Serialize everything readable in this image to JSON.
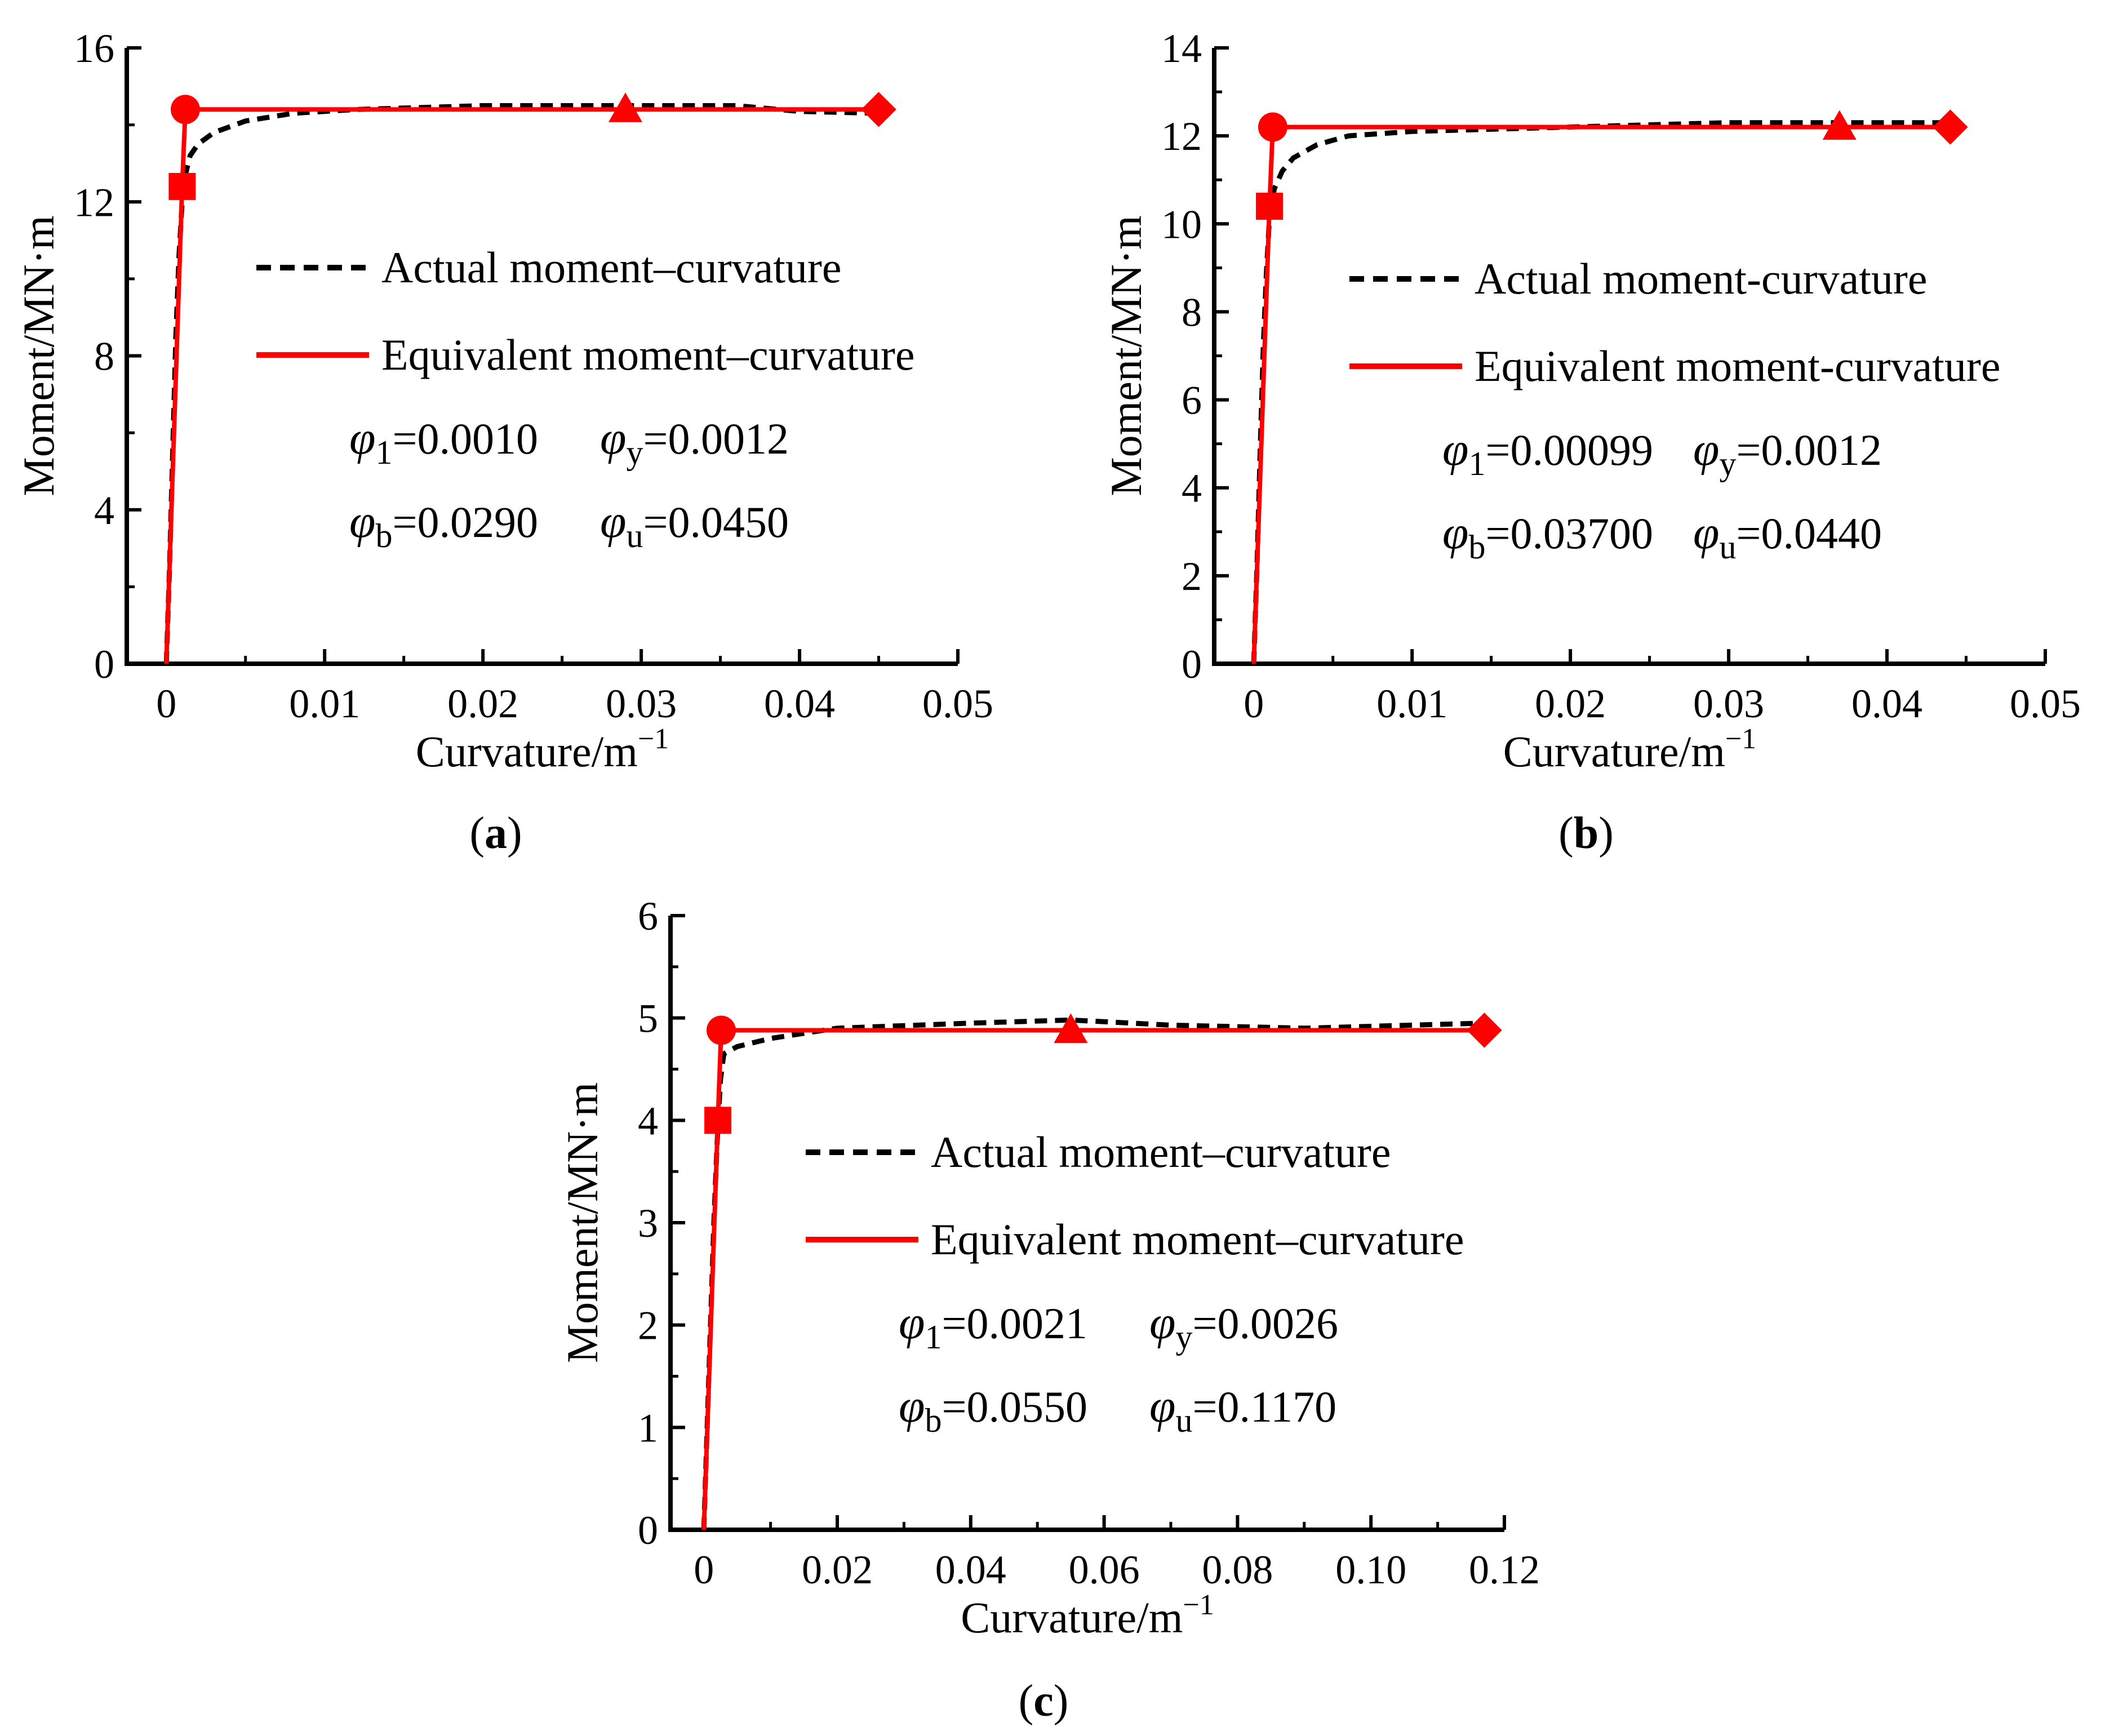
{
  "colors": {
    "actual": "#000000",
    "equivalent": "#ff0000",
    "axis": "#000000"
  },
  "chart_data": [
    {
      "id": "a",
      "type": "line",
      "panel_label": "a",
      "xlabel": "Curvature/m",
      "xlabel_sup": "−1",
      "ylabel": "Moment/MN·m",
      "xlim": [
        -0.0025,
        0.05
      ],
      "ylim": [
        0,
        16
      ],
      "xticks": [
        0,
        0.01,
        0.02,
        0.03,
        0.04,
        0.05
      ],
      "xtick_labels": [
        "0",
        "0.01",
        "0.02",
        "0.03",
        "0.04",
        "0.05"
      ],
      "yticks": [
        0,
        4,
        8,
        12,
        16
      ],
      "ytick_labels": [
        "0",
        "4",
        "8",
        "12",
        "16"
      ],
      "legend": [
        "Actual moment–curvature",
        "Equivalent moment–curvature"
      ],
      "params": [
        [
          {
            "sym": "φ",
            "sub": "1",
            "val": "=0.0010"
          },
          {
            "sym": "φ",
            "sub": "y",
            "val": "=0.0012"
          }
        ],
        [
          {
            "sym": "φ",
            "sub": "b",
            "val": "=0.0290"
          },
          {
            "sym": "φ",
            "sub": "u",
            "val": "=0.0450"
          }
        ]
      ],
      "series": [
        {
          "name": "Actual moment–curvature",
          "style": "dashed",
          "x": [
            0,
            0.0002,
            0.0004,
            0.0006,
            0.0008,
            0.001,
            0.0012,
            0.0015,
            0.002,
            0.003,
            0.005,
            0.008,
            0.012,
            0.02,
            0.03,
            0.036,
            0.04,
            0.045
          ],
          "y": [
            0,
            2.5,
            5.5,
            8.5,
            10.6,
            12.0,
            12.7,
            13.2,
            13.5,
            13.8,
            14.1,
            14.3,
            14.4,
            14.5,
            14.5,
            14.5,
            14.35,
            14.3
          ]
        },
        {
          "name": "Equivalent moment–curvature",
          "style": "solid",
          "x": [
            0,
            0.001,
            0.0012,
            0.029,
            0.045
          ],
          "y": [
            0,
            12.4,
            14.4,
            14.4,
            14.4
          ]
        }
      ],
      "markers": [
        {
          "shape": "square",
          "x": 0.001,
          "y": 12.4
        },
        {
          "shape": "circle",
          "x": 0.0012,
          "y": 14.4
        },
        {
          "shape": "triangle",
          "x": 0.029,
          "y": 14.4
        },
        {
          "shape": "diamond",
          "x": 0.045,
          "y": 14.4
        }
      ]
    },
    {
      "id": "b",
      "type": "line",
      "panel_label": "b",
      "xlabel": "Curvature/m",
      "xlabel_sup": "−1",
      "ylabel": "Moment/MN·m",
      "xlim": [
        -0.0025,
        0.05
      ],
      "ylim": [
        0,
        14
      ],
      "xticks": [
        0,
        0.01,
        0.02,
        0.03,
        0.04,
        0.05
      ],
      "xtick_labels": [
        "0",
        "0.01",
        "0.02",
        "0.03",
        "0.04",
        "0.05"
      ],
      "yticks": [
        0,
        2,
        4,
        6,
        8,
        10,
        12,
        14
      ],
      "ytick_labels": [
        "0",
        "2",
        "4",
        "6",
        "8",
        "10",
        "12",
        "14"
      ],
      "legend": [
        "Actual moment-curvature",
        "Equivalent moment-curvature"
      ],
      "params": [
        [
          {
            "sym": "φ",
            "sub": "1",
            "val": "=0.00099"
          },
          {
            "sym": "φ",
            "sub": "y",
            "val": "=0.0012"
          }
        ],
        [
          {
            "sym": "φ",
            "sub": "b",
            "val": "=0.03700"
          },
          {
            "sym": "φ",
            "sub": "u",
            "val": "=0.0440"
          }
        ]
      ],
      "series": [
        {
          "name": "Actual moment-curvature",
          "style": "dashed",
          "x": [
            0,
            0.0002,
            0.0004,
            0.0006,
            0.0008,
            0.001,
            0.0013,
            0.0018,
            0.0025,
            0.004,
            0.006,
            0.01,
            0.02,
            0.03,
            0.037,
            0.044
          ],
          "y": [
            0,
            2.2,
            4.8,
            7.2,
            8.9,
            10.2,
            10.8,
            11.2,
            11.5,
            11.8,
            12.0,
            12.1,
            12.2,
            12.3,
            12.3,
            12.3
          ]
        },
        {
          "name": "Equivalent moment-curvature",
          "style": "solid",
          "x": [
            0,
            0.00099,
            0.0012,
            0.037,
            0.044
          ],
          "y": [
            0,
            10.4,
            12.2,
            12.2,
            12.2
          ]
        }
      ],
      "markers": [
        {
          "shape": "square",
          "x": 0.00099,
          "y": 10.4
        },
        {
          "shape": "circle",
          "x": 0.0012,
          "y": 12.2
        },
        {
          "shape": "triangle",
          "x": 0.037,
          "y": 12.2
        },
        {
          "shape": "diamond",
          "x": 0.044,
          "y": 12.2
        }
      ]
    },
    {
      "id": "c",
      "type": "line",
      "panel_label": "c",
      "xlabel": "Curvature/m",
      "xlabel_sup": "−1",
      "ylabel": "Moment/MN·m",
      "xlim": [
        -0.005,
        0.12
      ],
      "ylim": [
        0,
        6
      ],
      "xticks": [
        0,
        0.02,
        0.04,
        0.06,
        0.08,
        0.1,
        0.12
      ],
      "xtick_labels": [
        "0",
        "0.02",
        "0.04",
        "0.06",
        "0.08",
        "0.10",
        "0.12"
      ],
      "yticks": [
        0,
        1,
        2,
        3,
        4,
        5,
        6
      ],
      "ytick_labels": [
        "0",
        "1",
        "2",
        "3",
        "4",
        "5",
        "6"
      ],
      "legend": [
        "Actual moment–curvature",
        "Equivalent moment–curvature"
      ],
      "params": [
        [
          {
            "sym": "φ",
            "sub": "1",
            "val": "=0.0021"
          },
          {
            "sym": "φ",
            "sub": "y",
            "val": "=0.0026"
          }
        ],
        [
          {
            "sym": "φ",
            "sub": "b",
            "val": "=0.0550"
          },
          {
            "sym": "φ",
            "sub": "u",
            "val": "=0.1170"
          }
        ]
      ],
      "series": [
        {
          "name": "Actual moment–curvature",
          "style": "dashed",
          "x": [
            0,
            0.0005,
            0.001,
            0.0015,
            0.002,
            0.0025,
            0.003,
            0.005,
            0.01,
            0.02,
            0.04,
            0.055,
            0.07,
            0.09,
            0.117
          ],
          "y": [
            0,
            1.0,
            2.0,
            3.0,
            3.8,
            4.4,
            4.65,
            4.72,
            4.8,
            4.9,
            4.95,
            4.98,
            4.93,
            4.9,
            4.95
          ]
        },
        {
          "name": "Equivalent moment–curvature",
          "style": "solid",
          "x": [
            0,
            0.0021,
            0.0026,
            0.055,
            0.117
          ],
          "y": [
            0,
            4.0,
            4.88,
            4.88,
            4.88
          ]
        }
      ],
      "markers": [
        {
          "shape": "square",
          "x": 0.0021,
          "y": 4.0
        },
        {
          "shape": "circle",
          "x": 0.0026,
          "y": 4.88
        },
        {
          "shape": "triangle",
          "x": 0.055,
          "y": 4.88
        },
        {
          "shape": "diamond",
          "x": 0.117,
          "y": 4.88
        }
      ]
    }
  ]
}
